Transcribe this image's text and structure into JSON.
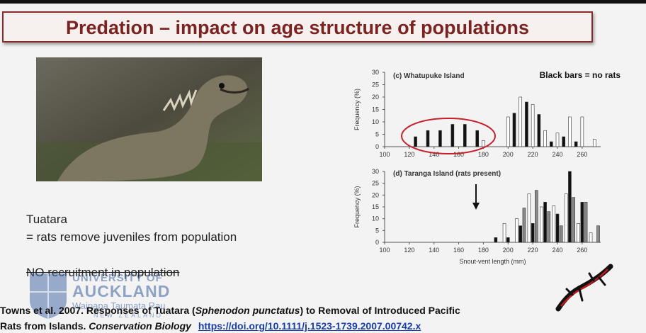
{
  "slide": {
    "title": "Predation – impact on age structure of populations",
    "text_line1": "Tuatara",
    "text_line2": "= rats remove juveniles from population",
    "text_line3": "NO recruitment in population",
    "citation_pre": "Towns et al. 2007. Responses of Tuatara (",
    "citation_species": "Sphenodon punctatus",
    "citation_post": ") to Removal of Introduced Pacific",
    "citation_line2_pre": "Rats from Islands. ",
    "citation_journal": "Conservation Biology",
    "doi_link": "https://doi.org/10.1111/j.1523-1739.2007.00742.x",
    "logo_line1": "UNIVERSITY OF",
    "logo_line2": "AUCKLAND",
    "logo_line3": "Waipapa Taumata Rau",
    "logo_line4": "NEW ZEALAND"
  },
  "chart_data": [
    {
      "type": "bar",
      "title": "(c) Whatupuke Island",
      "legend_note": "Black bars = no rats",
      "ylabel": "Frequency (%)",
      "xlabel": "",
      "ylim": [
        0,
        30
      ],
      "yticks": [
        "0",
        "5",
        "10",
        "15",
        "20",
        "25",
        "30"
      ],
      "xticks": [
        "100",
        "120",
        "140",
        "160",
        "180",
        "200",
        "220",
        "240",
        "260"
      ],
      "xlim": [
        100,
        275
      ],
      "series": [
        {
          "color": "#111111",
          "x": [
            125,
            135,
            145,
            155,
            165,
            175,
            205,
            215,
            225,
            235,
            245,
            255
          ],
          "values": [
            4,
            6.5,
            6.5,
            9,
            9,
            6.5,
            13.5,
            18,
            13,
            2,
            4,
            2
          ]
        },
        {
          "color": "#ffffff",
          "x": [
            180,
            200,
            210,
            220,
            230,
            240,
            250,
            260,
            270
          ],
          "values": [
            2.5,
            12,
            20,
            17,
            6.5,
            5.5,
            12,
            12,
            3
          ]
        }
      ]
    },
    {
      "type": "bar",
      "title": "(d) Taranga Island (rats present)",
      "ylabel": "Frequency (%)",
      "xlabel": "Snout-vent length (mm)",
      "ylim": [
        0,
        30
      ],
      "yticks": [
        "0",
        "5",
        "10",
        "15",
        "20",
        "25",
        "30"
      ],
      "xticks": [
        "100",
        "120",
        "140",
        "160",
        "180",
        "200",
        "220",
        "240",
        "260"
      ],
      "xlim": [
        100,
        275
      ],
      "series": [
        {
          "color": "#ffffff",
          "x": [
            197,
            207,
            217,
            227,
            237,
            247,
            257,
            267
          ],
          "values": [
            8,
            10,
            20.5,
            15,
            15.5,
            20.5,
            8,
            4
          ]
        },
        {
          "color": "#111111",
          "x": [
            190,
            200,
            210,
            220,
            230,
            240,
            250,
            260
          ],
          "values": [
            2,
            2,
            7,
            8,
            17,
            12,
            30,
            17
          ]
        },
        {
          "color": "#888888",
          "x": [
            213,
            223,
            233,
            243,
            253,
            263,
            273
          ],
          "values": [
            14.5,
            22,
            13,
            7,
            19,
            17,
            7
          ]
        }
      ]
    }
  ]
}
